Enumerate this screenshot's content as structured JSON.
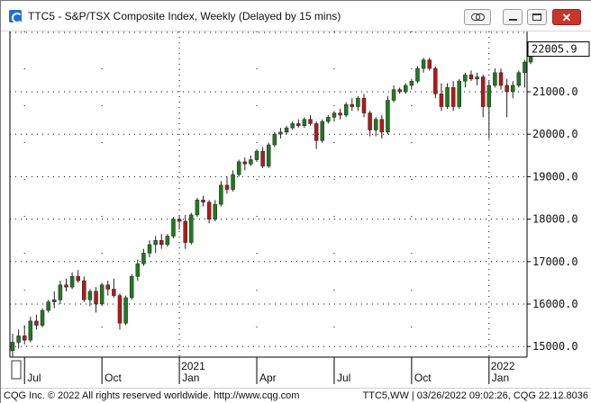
{
  "window": {
    "title": "TTC5 - S&P/TSX Composite Index, Weekly (Delayed by 15 mins)",
    "title_icon": "cqg-logo-icon",
    "buttons": [
      "link-icon",
      "minimize-icon",
      "maximize-icon",
      "close-icon"
    ],
    "close_symbol": "✕"
  },
  "status": {
    "left": "CQG Inc. © 2022 All rights reserved worldwide. http://www.cqg.com",
    "right": "TTC5,WW | 03/26/2022 09:02:26, CQG 22.12.8036"
  },
  "colors": {
    "up": "#1f7a1f",
    "down": "#b21a1a",
    "grid": "#000000",
    "close_button": "#c7352b"
  },
  "chart_data": {
    "type": "candlestick",
    "title": "TTC5 - S&P/TSX Composite Index, Weekly (Delayed by 15 mins)",
    "period": "weekly",
    "last_price_label": "22005.9",
    "y_ticks": [
      "15000.0",
      "16000.0",
      "17000.0",
      "18000.0",
      "19000.0",
      "20000.0",
      "21000.0"
    ],
    "ylim": [
      14750,
      22420
    ],
    "x_labels": [
      {
        "label": "Jul",
        "week": 2
      },
      {
        "label": "Oct",
        "week": 15
      },
      {
        "label": "Jan",
        "week": 28
      },
      {
        "label": "Apr",
        "week": 41
      },
      {
        "label": "Jul",
        "week": 54
      },
      {
        "label": "Oct",
        "week": 67
      },
      {
        "label": "Jan",
        "week": 80
      }
    ],
    "year_labels": [
      {
        "label": "2021",
        "week": 28
      },
      {
        "label": "2022",
        "week": 80
      }
    ],
    "grid": true,
    "candles": [
      [
        14900,
        15300,
        14750,
        15100
      ],
      [
        15100,
        15400,
        14950,
        15250
      ],
      [
        15250,
        15500,
        15050,
        15150
      ],
      [
        15150,
        15700,
        15100,
        15600
      ],
      [
        15600,
        15750,
        15400,
        15500
      ],
      [
        15500,
        15900,
        15450,
        15850
      ],
      [
        15850,
        16100,
        15800,
        16050
      ],
      [
        16050,
        16300,
        15900,
        16100
      ],
      [
        16100,
        16550,
        16000,
        16450
      ],
      [
        16450,
        16600,
        16300,
        16400
      ],
      [
        16400,
        16750,
        16350,
        16650
      ],
      [
        16650,
        16800,
        16500,
        16550
      ],
      [
        16550,
        16650,
        16050,
        16100
      ],
      [
        16100,
        16350,
        15950,
        16300
      ],
      [
        16300,
        16400,
        15800,
        16000
      ],
      [
        16000,
        16500,
        15950,
        16450
      ],
      [
        16450,
        16550,
        16200,
        16350
      ],
      [
        16350,
        16600,
        16150,
        16200
      ],
      [
        16200,
        16250,
        15400,
        15550
      ],
      [
        15550,
        16200,
        15500,
        16150
      ],
      [
        16150,
        16700,
        16100,
        16650
      ],
      [
        16650,
        17050,
        16550,
        16950
      ],
      [
        16950,
        17300,
        16900,
        17200
      ],
      [
        17200,
        17500,
        17100,
        17400
      ],
      [
        17400,
        17600,
        17200,
        17500
      ],
      [
        17500,
        17650,
        17300,
        17400
      ],
      [
        17400,
        17650,
        17350,
        17600
      ],
      [
        17600,
        18050,
        17550,
        18000
      ],
      [
        18000,
        18100,
        17750,
        17950
      ],
      [
        17950,
        18100,
        17300,
        17450
      ],
      [
        17450,
        18150,
        17400,
        18100
      ],
      [
        18100,
        18500,
        18050,
        18450
      ],
      [
        18450,
        18550,
        18300,
        18400
      ],
      [
        18400,
        18450,
        17900,
        18000
      ],
      [
        18000,
        18450,
        17950,
        18350
      ],
      [
        18350,
        18900,
        18300,
        18800
      ],
      [
        18800,
        19000,
        18600,
        18700
      ],
      [
        18700,
        19150,
        18650,
        19050
      ],
      [
        19050,
        19400,
        19000,
        19350
      ],
      [
        19350,
        19450,
        19150,
        19300
      ],
      [
        19300,
        19500,
        19250,
        19400
      ],
      [
        19400,
        19650,
        19350,
        19600
      ],
      [
        19600,
        19700,
        19200,
        19250
      ],
      [
        19250,
        19800,
        19200,
        19750
      ],
      [
        19750,
        20050,
        19700,
        20000
      ],
      [
        20000,
        20150,
        19900,
        20050
      ],
      [
        20050,
        20200,
        20000,
        20150
      ],
      [
        20150,
        20300,
        20100,
        20250
      ],
      [
        20250,
        20350,
        20150,
        20200
      ],
      [
        20200,
        20400,
        20150,
        20350
      ],
      [
        20350,
        20450,
        20200,
        20250
      ],
      [
        20250,
        20300,
        19650,
        19850
      ],
      [
        19850,
        20350,
        19800,
        20300
      ],
      [
        20300,
        20450,
        20250,
        20400
      ],
      [
        20400,
        20550,
        20300,
        20500
      ],
      [
        20500,
        20600,
        20350,
        20450
      ],
      [
        20450,
        20750,
        20400,
        20700
      ],
      [
        20700,
        20850,
        20550,
        20650
      ],
      [
        20650,
        20900,
        20550,
        20850
      ],
      [
        20850,
        20950,
        20400,
        20500
      ],
      [
        20500,
        20550,
        19950,
        20100
      ],
      [
        20100,
        20400,
        19950,
        20350
      ],
      [
        20350,
        20450,
        19900,
        20050
      ],
      [
        20050,
        20900,
        20000,
        20800
      ],
      [
        20800,
        21150,
        20750,
        21050
      ],
      [
        21050,
        21100,
        20950,
        21000
      ],
      [
        21000,
        21200,
        20950,
        21150
      ],
      [
        21150,
        21300,
        21050,
        21250
      ],
      [
        21250,
        21600,
        21200,
        21550
      ],
      [
        21550,
        21800,
        21450,
        21750
      ],
      [
        21750,
        21800,
        21500,
        21550
      ],
      [
        21550,
        21600,
        20850,
        20950
      ],
      [
        20950,
        21200,
        20550,
        20650
      ],
      [
        20650,
        21200,
        20600,
        21100
      ],
      [
        21100,
        21250,
        20550,
        20650
      ],
      [
        20650,
        21300,
        20600,
        21250
      ],
      [
        21250,
        21450,
        21100,
        21400
      ],
      [
        21400,
        21500,
        21250,
        21300
      ],
      [
        21300,
        21450,
        21150,
        21350
      ],
      [
        21350,
        21400,
        20400,
        20650
      ],
      [
        20650,
        21250,
        19900,
        21150
      ],
      [
        21150,
        21550,
        21100,
        21450
      ],
      [
        21450,
        21550,
        21050,
        21150
      ],
      [
        21150,
        21300,
        20400,
        21000
      ],
      [
        21000,
        21250,
        20850,
        21150
      ],
      [
        21150,
        21500,
        21100,
        21450
      ],
      [
        21450,
        21750,
        21100,
        21700
      ],
      [
        21700,
        22150,
        21650,
        22005.9
      ]
    ]
  }
}
